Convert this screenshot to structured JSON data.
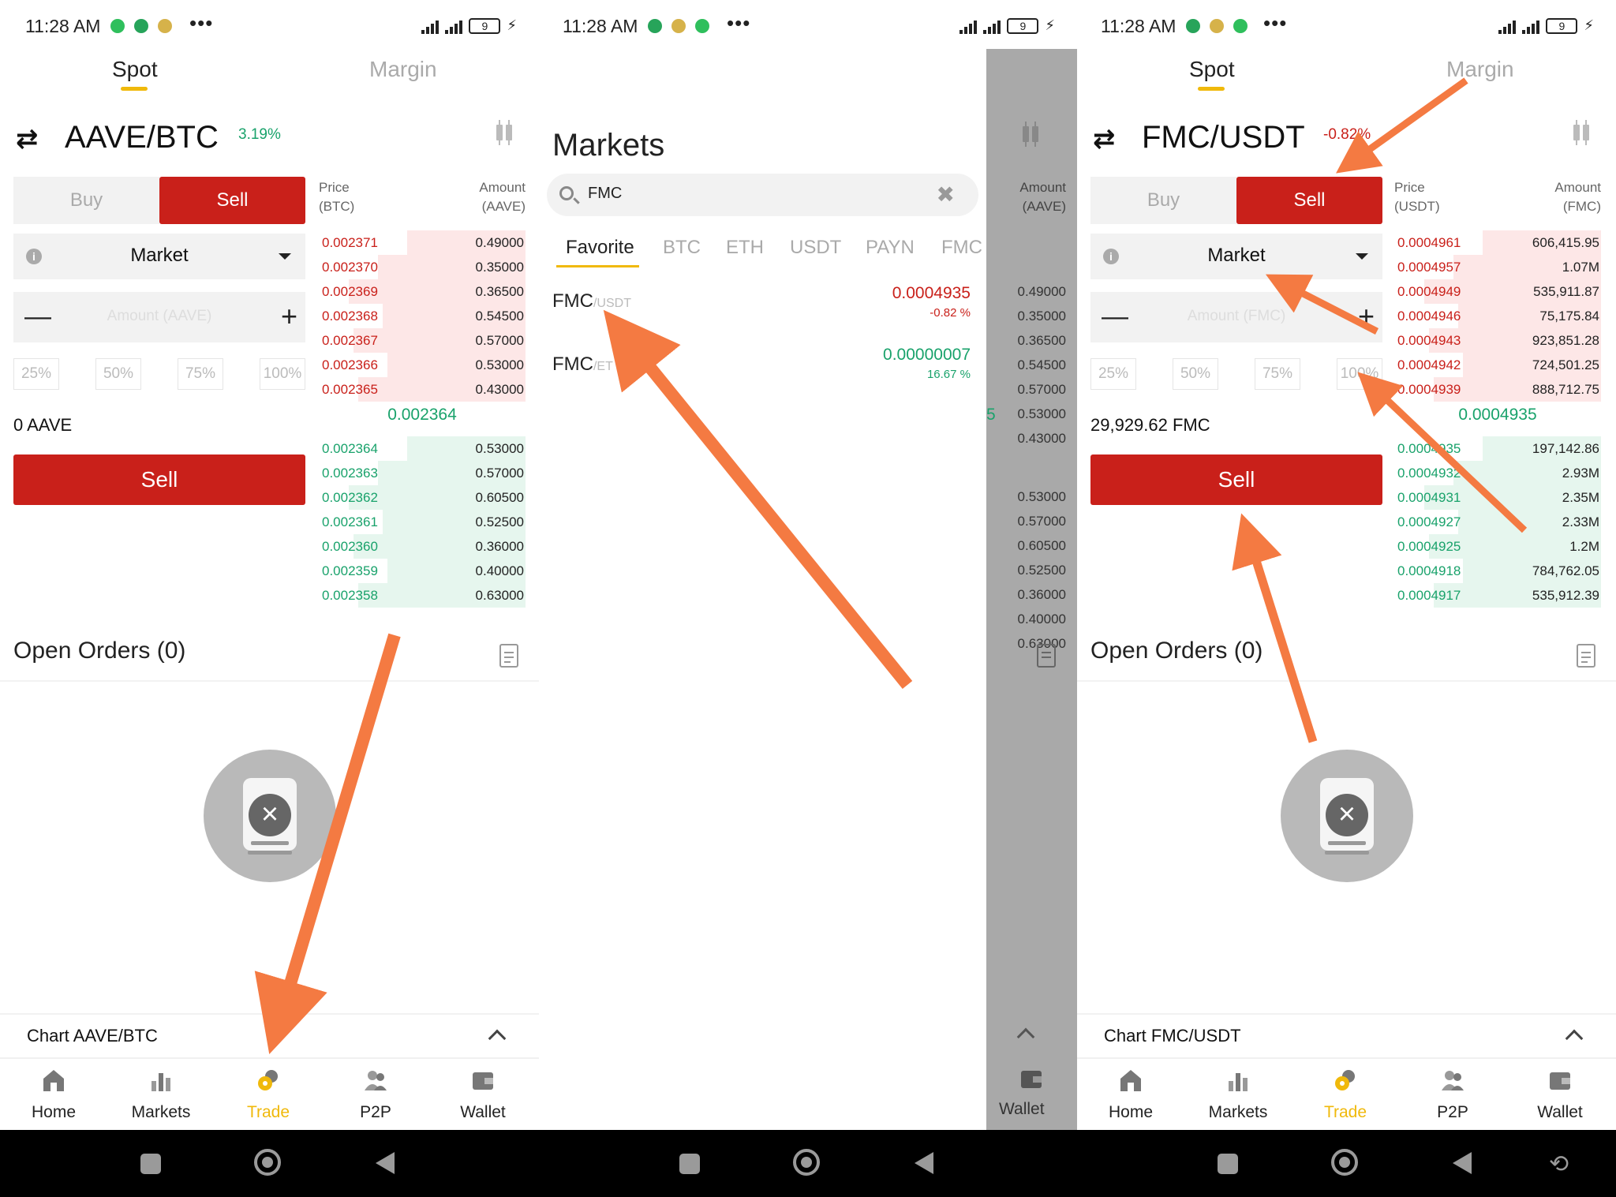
{
  "status_bar": {
    "time": "11:28 AM",
    "network": "5G",
    "battery": "9"
  },
  "colors": {
    "accent": "#f0b90b",
    "sell_red": "#c9201a",
    "buy_green": "#19a26b",
    "annotation_arrow": "#f47a42"
  },
  "left": {
    "tabs": {
      "spot": "Spot",
      "margin": "Margin"
    },
    "pair": "AAVE/BTC",
    "change": "3.19%",
    "buy_label": "Buy",
    "sell_tab_label": "Sell",
    "order_type": "Market",
    "amount_placeholder": "Amount (AAVE)",
    "pct": [
      "25%",
      "50%",
      "75%",
      "100%"
    ],
    "available": "0 AAVE",
    "sell_button": "Sell",
    "orderbook": {
      "price_head": "Price",
      "price_unit": "(BTC)",
      "amount_head": "Amount",
      "amount_unit": "(AAVE)",
      "asks": [
        {
          "price": "0.002371",
          "amount": "0.49000"
        },
        {
          "price": "0.002370",
          "amount": "0.35000"
        },
        {
          "price": "0.002369",
          "amount": "0.36500"
        },
        {
          "price": "0.002368",
          "amount": "0.54500"
        },
        {
          "price": "0.002367",
          "amount": "0.57000"
        },
        {
          "price": "0.002366",
          "amount": "0.53000"
        },
        {
          "price": "0.002365",
          "amount": "0.43000"
        }
      ],
      "mid": "0.002364",
      "bids": [
        {
          "price": "0.002364",
          "amount": "0.53000"
        },
        {
          "price": "0.002363",
          "amount": "0.57000"
        },
        {
          "price": "0.002362",
          "amount": "0.60500"
        },
        {
          "price": "0.002361",
          "amount": "0.52500"
        },
        {
          "price": "0.002360",
          "amount": "0.36000"
        },
        {
          "price": "0.002359",
          "amount": "0.40000"
        },
        {
          "price": "0.002358",
          "amount": "0.63000"
        }
      ]
    },
    "open_orders": "Open Orders (0)",
    "chart_label": "Chart AAVE/BTC"
  },
  "middle": {
    "title": "Markets",
    "search_value": "FMC",
    "tabs": [
      "Favorite",
      "BTC",
      "ETH",
      "USDT",
      "PAYN",
      "FMC"
    ],
    "rows": [
      {
        "base": "FMC",
        "quote": "/USDT",
        "price": "0.0004935",
        "change": "-0.82 %"
      },
      {
        "base": "FMC",
        "quote": "/ET",
        "price": "0.00000007",
        "change": "16.67 %"
      }
    ],
    "shade": {
      "amount_head": "Amount",
      "amount_unit": "(AAVE)",
      "amounts": [
        "0.49000",
        "0.35000",
        "0.36500",
        "0.54500",
        "0.57000",
        "0.53000",
        "0.43000",
        "0.53000",
        "0.57000",
        "0.60500",
        "0.52500",
        "0.36000",
        "0.40000",
        "0.63000"
      ],
      "mid_fragment": "5",
      "wallet": "Wallet"
    }
  },
  "right": {
    "tabs": {
      "spot": "Spot",
      "margin": "Margin"
    },
    "pair": "FMC/USDT",
    "change": "-0.82%",
    "buy_label": "Buy",
    "sell_tab_label": "Sell",
    "order_type": "Market",
    "amount_placeholder": "Amount (FMC)",
    "pct": [
      "25%",
      "50%",
      "75%",
      "100%"
    ],
    "available": "29,929.62 FMC",
    "sell_button": "Sell",
    "orderbook": {
      "price_head": "Price",
      "price_unit": "(USDT)",
      "amount_head": "Amount",
      "amount_unit": "(FMC)",
      "asks": [
        {
          "price": "0.0004961",
          "amount": "606,415.95"
        },
        {
          "price": "0.0004957",
          "amount": "1.07M"
        },
        {
          "price": "0.0004949",
          "amount": "535,911.87"
        },
        {
          "price": "0.0004946",
          "amount": "75,175.84"
        },
        {
          "price": "0.0004943",
          "amount": "923,851.28"
        },
        {
          "price": "0.0004942",
          "amount": "724,501.25"
        },
        {
          "price": "0.0004939",
          "amount": "888,712.75"
        }
      ],
      "mid": "0.0004935",
      "bids": [
        {
          "price": "0.0004935",
          "amount": "197,142.86"
        },
        {
          "price": "0.0004932",
          "amount": "2.93M"
        },
        {
          "price": "0.0004931",
          "amount": "2.35M"
        },
        {
          "price": "0.0004927",
          "amount": "2.33M"
        },
        {
          "price": "0.0004925",
          "amount": "1.2M"
        },
        {
          "price": "0.0004918",
          "amount": "784,762.05"
        },
        {
          "price": "0.0004917",
          "amount": "535,912.39"
        }
      ]
    },
    "open_orders": "Open Orders (0)",
    "chart_label": "Chart FMC/USDT"
  },
  "bottom_nav": [
    "Home",
    "Markets",
    "Trade",
    "P2P",
    "Wallet"
  ]
}
